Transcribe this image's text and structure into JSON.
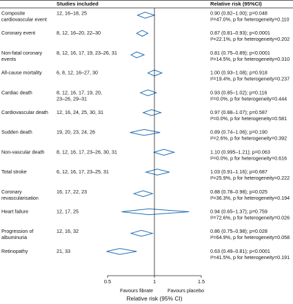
{
  "header": {
    "studies": "Studies included",
    "rr": "Relative risk (95%CI)"
  },
  "chart_data": {
    "type": "forest",
    "xlabel": "Relative risk (95% CI)",
    "xlim": [
      0.5,
      1.5
    ],
    "xticks": [
      "0.5",
      "1",
      "1.5"
    ],
    "reference_line": 1.0,
    "favours_left": "Favours fibrate",
    "favours_right": "Favours placebo",
    "rows": [
      {
        "label": [
          "Composite",
          "cardiovascular event"
        ],
        "studies": [
          "12, 16–18, 25"
        ],
        "rr": 0.9,
        "lo": 0.82,
        "hi": 1.0,
        "stat1": "0.90 (0.82–1.00); p=0.048",
        "stat2": "I²=47.0%, p for heterogeneity=0.110"
      },
      {
        "label": [
          "Coronary event"
        ],
        "studies": [
          "8, 12, 16–20, 22–30"
        ],
        "rr": 0.87,
        "lo": 0.81,
        "hi": 0.93,
        "stat1": "0.87 (0.81–0.93); p<0.0001",
        "stat2": "I²=22.1%, p for heterogeneity=0.202"
      },
      {
        "label": [
          "Non-fatal coronary",
          "events"
        ],
        "studies": [
          "8, 12, 16, 17, 19, 23–26, 31"
        ],
        "rr": 0.81,
        "lo": 0.75,
        "hi": 0.89,
        "stat1": "0.81 (0.75–0.89); p<0.0001",
        "stat2": "I²=14.5%, p for heterogeneity=0.310"
      },
      {
        "label": [
          "All-cause mortality"
        ],
        "studies": [
          "6, 8, 12, 16–27, 30"
        ],
        "rr": 1.0,
        "lo": 0.93,
        "hi": 1.08,
        "stat1": "1.00 (0.93–1.08); p=0.918",
        "stat2": "I²=19.4%, p for heterogeneity=0.237"
      },
      {
        "label": [
          "Cardiac death"
        ],
        "studies": [
          "8, 12, 16, 17, 19, 20,",
          "23–26, 29–31"
        ],
        "rr": 0.93,
        "lo": 0.85,
        "hi": 1.02,
        "stat1": "0.93 (0.85–1.02); p=0.116",
        "stat2": "I²=0.0%, p for heterogeneity=0.444"
      },
      {
        "label": [
          "Cardiovascular death"
        ],
        "studies": [
          "12, 16, 24, 25, 30, 31"
        ],
        "rr": 0.97,
        "lo": 0.88,
        "hi": 1.07,
        "stat1": "0.97 (0.88–1.07); p=0.587",
        "stat2": "I²=0.0%, p for heterogeneity=0.581"
      },
      {
        "label": [
          "Sudden death"
        ],
        "studies": [
          "19, 20, 23, 24, 26"
        ],
        "rr": 0.89,
        "lo": 0.74,
        "hi": 1.06,
        "stat1": "0.89 (0.74–1.06); p=0.190",
        "stat2": "I²=2.6%, p for heterogeneity=0.392"
      },
      {
        "label": [
          "Non-vascular death"
        ],
        "studies": [
          "8, 12, 16, 17, 23–26, 30, 31"
        ],
        "rr": 1.1,
        "lo": 0.995,
        "hi": 1.21,
        "stat1": "1.10 (0.995–1.21); p=0.063",
        "stat2": "I²=0.0%, p for heterogeneity=0.616"
      },
      {
        "label": [
          "Total stroke"
        ],
        "studies": [
          "6, 12, 16, 17, 23–25, 31"
        ],
        "rr": 1.03,
        "lo": 0.91,
        "hi": 1.16,
        "stat1": "1.03 (0.91–1.16); p=0.687",
        "stat2": "I²=25.9%, p for heterogeneity=0.222"
      },
      {
        "label": [
          "Coronary",
          "revascularisation"
        ],
        "studies": [
          "16, 17, 22, 23"
        ],
        "rr": 0.88,
        "lo": 0.78,
        "hi": 0.98,
        "stat1": "0.88 (0.78–0.98); p=0.025",
        "stat2": "I²=36.3%, p for heterogeneity=0.194"
      },
      {
        "label": [
          "Heart failure"
        ],
        "studies": [
          "12, 17, 25"
        ],
        "rr": 0.94,
        "lo": 0.65,
        "hi": 1.37,
        "stat1": "0.94 (0.65–1.37); p=0.759",
        "stat2": "I²=72.6%, p for heterogeneity=0.026"
      },
      {
        "label": [
          "Progression of",
          "albuminuria"
        ],
        "studies": [
          "12, 16, 32"
        ],
        "rr": 0.86,
        "lo": 0.75,
        "hi": 0.98,
        "stat1": "0.86 (0.75–0.98); p=0.028",
        "stat2": "I²=64.9%, p for heterogeneity=0.058"
      },
      {
        "label": [
          "Retinopathy"
        ],
        "studies": [
          "21, 33"
        ],
        "rr": 0.63,
        "lo": 0.49,
        "hi": 0.81,
        "stat1": "0.63 (0.49–0.81); p<0.0001",
        "stat2": "I²=41.5%, p for heterogeneity=0.191"
      }
    ],
    "colors": {
      "diamond": "#1f6db4",
      "reference": "#222222",
      "axis": "#222222"
    }
  }
}
